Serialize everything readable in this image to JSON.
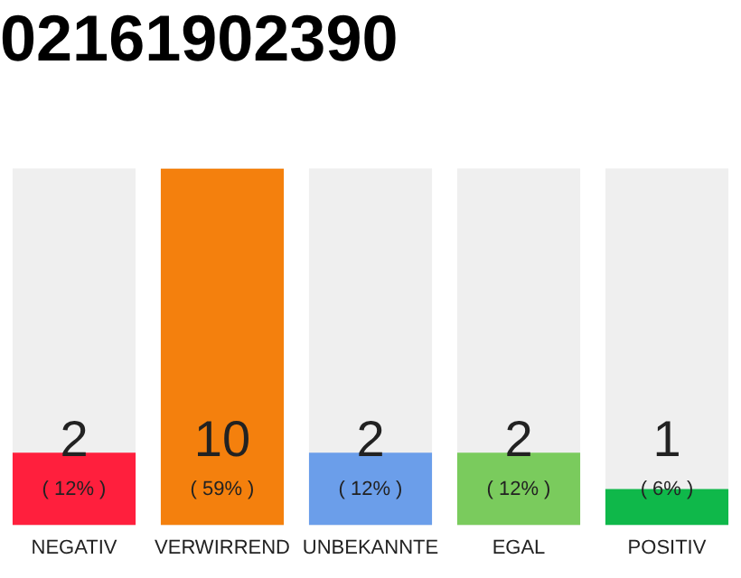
{
  "chart_data": {
    "type": "bar",
    "title": "02161902390",
    "categories": [
      "NEGATIV",
      "VERWIRREND",
      "UNBEKANNTE",
      "EGAL",
      "POSITIV"
    ],
    "values": [
      12,
      59,
      12,
      12,
      6
    ],
    "colors": [
      "#ff1f3d",
      "#f4800d",
      "#6b9eea",
      "#7acb5d",
      "#0fb84a"
    ],
    "value_labels": [
      "( 12% )",
      "( 59% )",
      "( 12% )",
      "( 12% )",
      "( 6% )"
    ],
    "annotations": [
      "2",
      "10",
      "2",
      "2",
      "1"
    ],
    "tick_labels": "x",
    "grid": false,
    "legend": false
  }
}
